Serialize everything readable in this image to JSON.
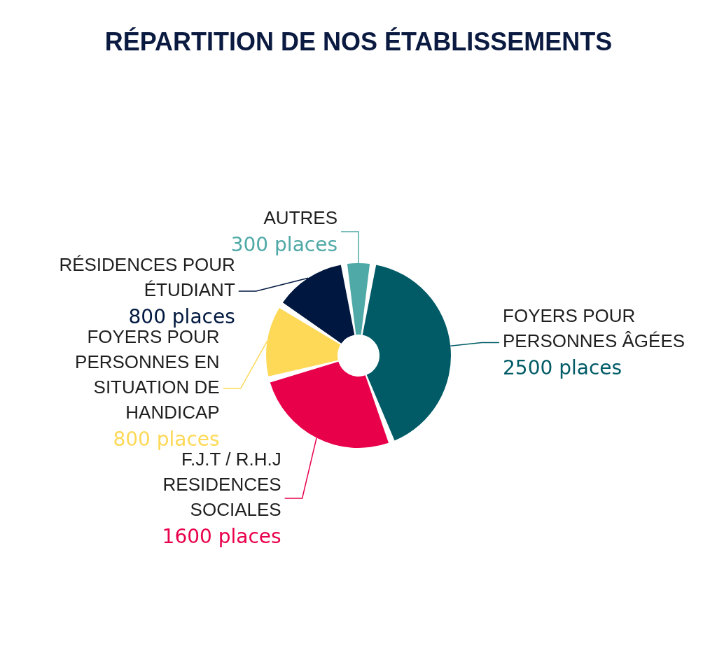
{
  "chart_data": {
    "type": "donut",
    "title": "RÉPARTITION DE NOS ÉTABLISSEMENTS",
    "categories": [
      "AUTRES",
      "FOYERS POUR PERSONNES ÂGÉES",
      "F.J.T / R.H.J RESIDENCES SOCIALES",
      "FOYERS POUR PERSONNES EN SITUATION DE HANDICAP",
      "RÉSIDENCES POUR ÉTUDIANT"
    ],
    "values": [
      300,
      2500,
      1600,
      800,
      800
    ],
    "value_labels": [
      "300 places",
      "2500 places",
      "1600 places",
      "800 places",
      "800 places"
    ],
    "colors": [
      "#4fa9a6",
      "#005b66",
      "#e9004b",
      "#fdd957",
      "#00183f"
    ]
  }
}
